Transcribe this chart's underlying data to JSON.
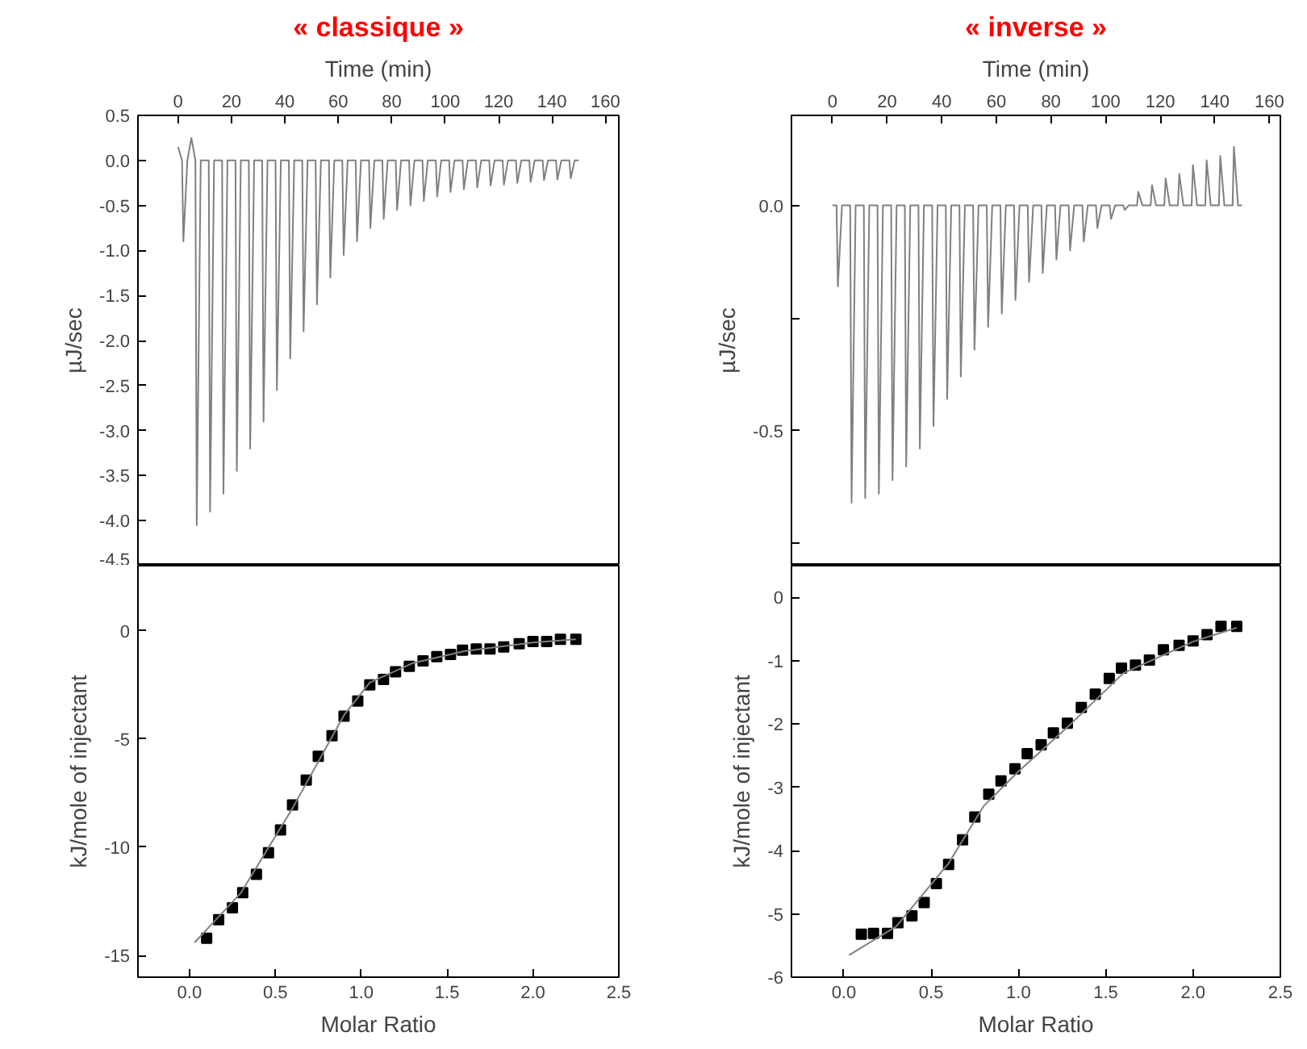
{
  "chart_data": [
    {
      "type": "line",
      "title": "« classique »",
      "xlabel": "Time (min)",
      "ylabel": "µJ/sec",
      "xlim": [
        -15,
        165
      ],
      "ylim": [
        -4.5,
        0.5
      ],
      "xticks": [
        0,
        20,
        40,
        60,
        80,
        100,
        120,
        140,
        160
      ],
      "yticks": [
        {
          "value": 0.5,
          "label": "0.5"
        },
        {
          "value": 0,
          "label": "0.0"
        },
        {
          "value": -0.5,
          "label": "-0.5"
        },
        {
          "value": -1,
          "label": "-1.0"
        },
        {
          "value": -1.5,
          "label": "-1.5"
        },
        {
          "value": -2,
          "label": "-2.0"
        },
        {
          "value": -2.5,
          "label": "-2.5"
        },
        {
          "value": -3,
          "label": "-3.0"
        },
        {
          "value": -3.5,
          "label": "-3.5"
        },
        {
          "value": -4,
          "label": "-4.0"
        },
        {
          "value": -4.5,
          "label": "-4.5"
        }
      ],
      "series": [
        {
          "color": "#808080",
          "x": [
            0,
            1.5,
            2,
            3.5,
            5,
            6.5,
            7,
            8.5,
            11.5,
            12,
            13.5,
            16.5,
            17,
            18.5,
            21.5,
            22,
            23.5,
            26.5,
            27,
            28.5,
            31.5,
            32,
            33.5,
            36.5,
            37,
            38.5,
            41.5,
            42,
            43.5,
            46.5,
            47,
            48.5,
            51.5,
            52,
            53.5,
            56.5,
            57,
            58.5,
            61.5,
            62,
            63.5,
            66.5,
            67,
            68.5,
            71.5,
            72,
            73.5,
            76.5,
            77,
            78.5,
            81.5,
            82,
            83.5,
            86.5,
            87,
            88.5,
            91.5,
            92,
            93.5,
            96.5,
            97,
            98.5,
            101.5,
            102,
            103.5,
            106.5,
            107,
            108.5,
            111.5,
            112,
            113.5,
            116.5,
            117,
            118.5,
            121.5,
            122,
            123.5,
            126.5,
            127,
            128.5,
            131.5,
            132,
            133.5,
            136.5,
            137,
            138.5,
            141.5,
            142,
            143.5,
            146.5,
            147,
            148.5,
            150
          ],
          "values": [
            0.15,
            0,
            -0.9,
            0,
            0.25,
            0,
            -4.05,
            0,
            0,
            -3.9,
            0,
            0,
            -3.7,
            0,
            0,
            -3.45,
            0,
            0,
            -3.2,
            0,
            0,
            -2.9,
            0,
            0,
            -2.55,
            0,
            0,
            -2.2,
            0,
            0,
            -1.9,
            0,
            0,
            -1.6,
            0,
            0,
            -1.3,
            0,
            0,
            -1.05,
            0,
            0,
            -0.9,
            0,
            0,
            -0.75,
            0,
            0,
            -0.65,
            0,
            0,
            -0.55,
            0,
            0,
            -0.5,
            0,
            0,
            -0.45,
            0,
            0,
            -0.4,
            0,
            0,
            -0.35,
            0,
            0,
            -0.32,
            0,
            0,
            -0.3,
            0,
            0,
            -0.28,
            0,
            0,
            -0.27,
            0,
            0,
            -0.25,
            0,
            0,
            -0.24,
            0,
            0,
            -0.22,
            0,
            0,
            -0.21,
            0,
            0,
            -0.2,
            0,
            0
          ]
        }
      ]
    },
    {
      "type": "line",
      "title": "« inverse »",
      "xlabel": "Time (min)",
      "ylabel": "µJ/sec",
      "xlim": [
        -15,
        164
      ],
      "ylim": [
        -0.8,
        0.2
      ],
      "xticks": [
        0,
        20,
        40,
        60,
        80,
        100,
        120,
        140,
        160
      ],
      "yticks": [
        {
          "value": 0,
          "label": "0.0"
        },
        {
          "value": -0.25,
          "label": null
        },
        {
          "value": -0.5,
          "label": "-0.5"
        },
        {
          "value": -0.75,
          "label": null
        }
      ],
      "series": [
        {
          "color": "#808080",
          "x": [
            0,
            1.5,
            2,
            3.5,
            6.5,
            7,
            8.5,
            11.5,
            12,
            13.5,
            16.5,
            17,
            18.5,
            21.5,
            22,
            23.5,
            26.5,
            27,
            28.5,
            31.5,
            32,
            33.5,
            36.5,
            37,
            38.5,
            41.5,
            42,
            43.5,
            46.5,
            47,
            48.5,
            51.5,
            52,
            53.5,
            56.5,
            57,
            58.5,
            61.5,
            62,
            63.5,
            66.5,
            67,
            68.5,
            71.5,
            72,
            73.5,
            76.5,
            77,
            78.5,
            81.5,
            82,
            83.5,
            86.5,
            87,
            88.5,
            91.5,
            92,
            93.5,
            96.5,
            97,
            98.5,
            101.5,
            102,
            103.5,
            106.5,
            107,
            108.5,
            111.5,
            112,
            113.5,
            116.5,
            117,
            118.5,
            121.5,
            122,
            123.5,
            126.5,
            127,
            128.5,
            131.5,
            132,
            133.5,
            136.5,
            137,
            138.5,
            141.5,
            142,
            143.5,
            146.5,
            147,
            148.5,
            150
          ],
          "values": [
            0,
            0,
            -0.18,
            0,
            0,
            -0.66,
            0,
            0,
            -0.65,
            0,
            0,
            -0.64,
            0,
            0,
            -0.61,
            0,
            0,
            -0.58,
            0,
            0,
            -0.54,
            0,
            0,
            -0.49,
            0,
            0,
            -0.43,
            0,
            0,
            -0.38,
            0,
            0,
            -0.32,
            0,
            0,
            -0.27,
            0,
            0,
            -0.24,
            0,
            0,
            -0.21,
            0,
            0,
            -0.17,
            0,
            0,
            -0.15,
            0,
            0,
            -0.12,
            0,
            0,
            -0.1,
            0,
            0,
            -0.08,
            0,
            0,
            -0.05,
            0,
            0,
            -0.03,
            0,
            0,
            -0.01,
            0,
            0,
            0.03,
            0,
            0,
            0.045,
            0,
            0,
            0.06,
            0,
            0,
            0.07,
            0,
            0,
            0.09,
            0,
            0,
            0.1,
            0,
            0,
            0.11,
            0,
            0,
            0.13,
            0,
            0
          ]
        }
      ]
    },
    {
      "type": "scatter",
      "marker": "square",
      "xlabel": "Molar Ratio",
      "ylabel": "kJ/mole of injectant",
      "xlim": [
        -0.3,
        2.5
      ],
      "ylim": [
        -16,
        3
      ],
      "xticks": [
        {
          "value": 0,
          "label": "0.0"
        },
        {
          "value": 0.5,
          "label": "0.5"
        },
        {
          "value": 1,
          "label": "1.0"
        },
        {
          "value": 1.5,
          "label": "1.5"
        },
        {
          "value": 2,
          "label": "2.0"
        },
        {
          "value": 2.5,
          "label": "2.5"
        }
      ],
      "yticks": [
        0,
        -5,
        -10,
        -15
      ],
      "series": [
        {
          "color": "#000000",
          "x": [
            0.1,
            0.17,
            0.25,
            0.31,
            0.39,
            0.46,
            0.53,
            0.6,
            0.68,
            0.75,
            0.83,
            0.9,
            0.98,
            1.05,
            1.13,
            1.2,
            1.28,
            1.36,
            1.44,
            1.52,
            1.59,
            1.67,
            1.75,
            1.83,
            1.92,
            2.0,
            2.08,
            2.16,
            2.25
          ],
          "values": [
            -14.2,
            -13.35,
            -12.8,
            -12.1,
            -11.25,
            -10.25,
            -9.2,
            -8.05,
            -6.9,
            -5.8,
            -4.85,
            -3.95,
            -3.25,
            -2.5,
            -2.25,
            -1.9,
            -1.65,
            -1.4,
            -1.2,
            -1.1,
            -0.9,
            -0.85,
            -0.85,
            -0.75,
            -0.6,
            -0.5,
            -0.5,
            -0.4,
            -0.4
          ]
        },
        {
          "type": "line",
          "marker": "none",
          "color": "#808080",
          "x": [
            0.03,
            0.3,
            0.6,
            0.9,
            1.05,
            1.3,
            1.6,
            2.0,
            2.25
          ],
          "values": [
            -14.4,
            -12.1,
            -8.2,
            -3.9,
            -2.4,
            -1.5,
            -0.95,
            -0.55,
            -0.4
          ]
        }
      ]
    },
    {
      "type": "scatter",
      "marker": "square",
      "xlabel": "Molar Ratio",
      "ylabel": "kJ/mole of injectant",
      "xlim": [
        -0.3,
        2.5
      ],
      "ylim": [
        -6,
        0.5
      ],
      "xticks": [
        {
          "value": 0,
          "label": "0.0"
        },
        {
          "value": 0.5,
          "label": "0.5"
        },
        {
          "value": 1,
          "label": "1.0"
        },
        {
          "value": 1.5,
          "label": "1.5"
        },
        {
          "value": 2,
          "label": "2.0"
        },
        {
          "value": 2.5,
          "label": "2.5"
        }
      ],
      "yticks": [
        0,
        -1,
        -2,
        -3,
        -4,
        -5,
        -6
      ],
      "series": [
        {
          "color": "#000000",
          "x": [
            0.1,
            0.17,
            0.25,
            0.31,
            0.39,
            0.46,
            0.53,
            0.6,
            0.68,
            0.75,
            0.83,
            0.9,
            0.98,
            1.05,
            1.13,
            1.2,
            1.28,
            1.36,
            1.44,
            1.52,
            1.59,
            1.67,
            1.75,
            1.83,
            1.92,
            2.0,
            2.08,
            2.16,
            2.25
          ],
          "values": [
            -5.32,
            -5.31,
            -5.31,
            -5.14,
            -5.03,
            -4.82,
            -4.52,
            -4.22,
            -3.83,
            -3.47,
            -3.11,
            -2.9,
            -2.71,
            -2.47,
            -2.33,
            -2.14,
            -1.99,
            -1.74,
            -1.53,
            -1.28,
            -1.12,
            -1.07,
            -0.99,
            -0.83,
            -0.76,
            -0.69,
            -0.59,
            -0.46,
            -0.46
          ]
        },
        {
          "type": "line",
          "marker": "none",
          "color": "#808080",
          "x": [
            0.03,
            0.3,
            0.6,
            0.8,
            1.0,
            1.3,
            1.6,
            2.0,
            2.25
          ],
          "values": [
            -5.65,
            -5.2,
            -4.2,
            -3.3,
            -2.75,
            -2.0,
            -1.2,
            -0.7,
            -0.48
          ]
        }
      ]
    }
  ]
}
